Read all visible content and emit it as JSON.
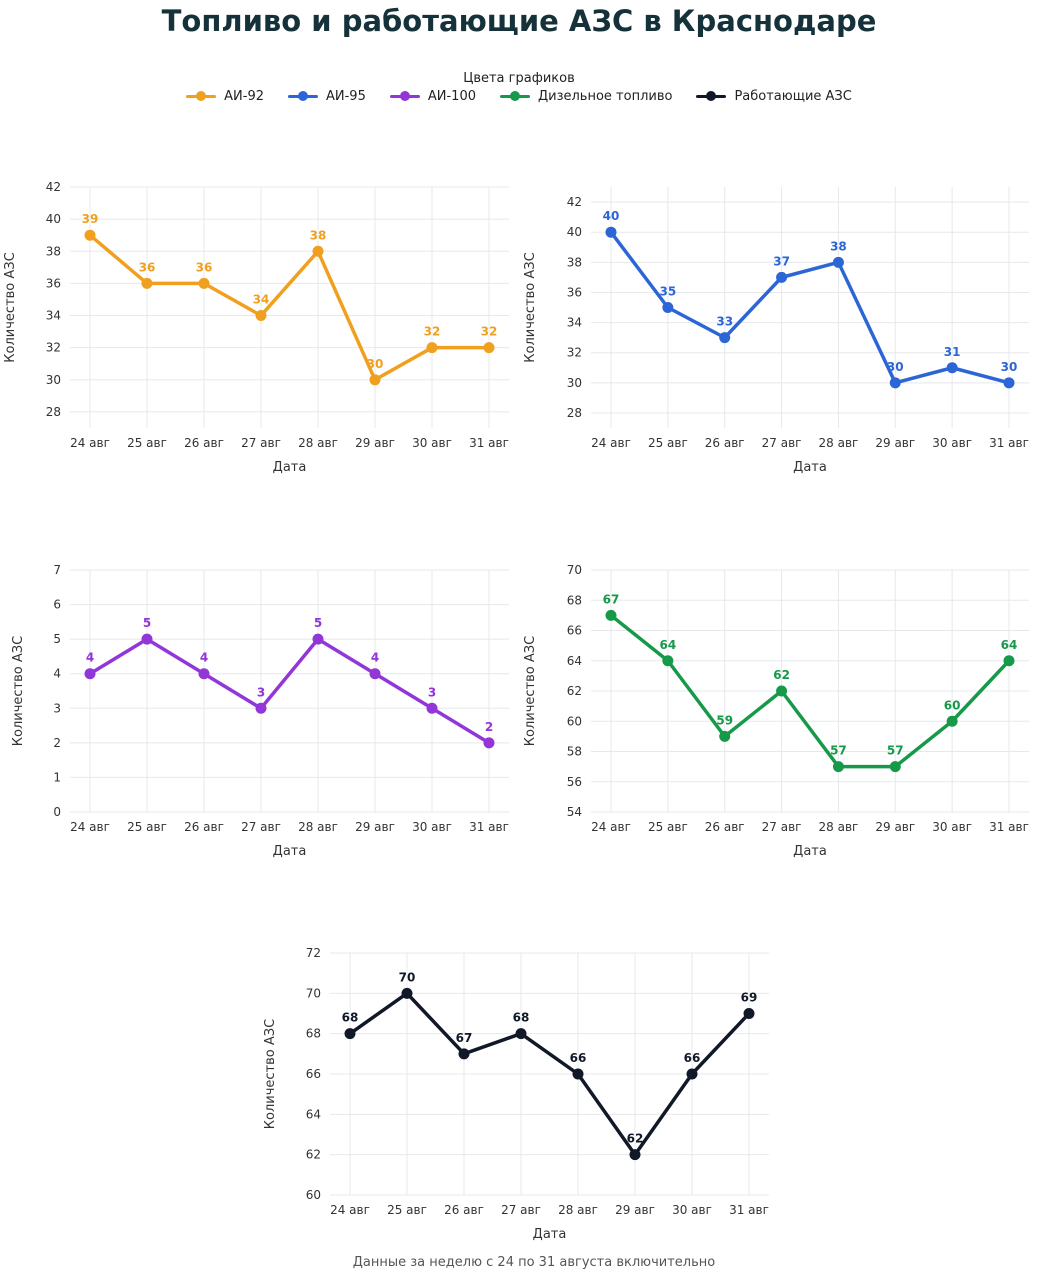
{
  "title": "Топливо и работающие АЗС в Краснодаре",
  "legend": {
    "title": "Цвета графиков",
    "items": [
      {
        "label": "АИ-92",
        "color": "#f0a01e"
      },
      {
        "label": "АИ-95",
        "color": "#2c66d6"
      },
      {
        "label": "АИ-100",
        "color": "#9236d8"
      },
      {
        "label": "Дизельное топливо",
        "color": "#17994a"
      },
      {
        "label": "Работающие АЗС",
        "color": "#111827"
      }
    ]
  },
  "footnote": "Данные за неделю с 24 по 31 августа включительно",
  "chart_data": [
    {
      "type": "line",
      "color": "#f0a01e",
      "categories": [
        "24 авг",
        "25 авг",
        "26 авг",
        "27 авг",
        "28 авг",
        "29 авг",
        "30 авг",
        "31 авг"
      ],
      "values": [
        39,
        36,
        36,
        34,
        38,
        30,
        32,
        32
      ],
      "xlabel": "Дата",
      "ylabel": "Количество АЗС",
      "ylim": [
        27,
        42
      ],
      "yticks": [
        28,
        30,
        32,
        34,
        36,
        38,
        40,
        42
      ],
      "grid": true
    },
    {
      "type": "line",
      "color": "#2c66d6",
      "categories": [
        "24 авг",
        "25 авг",
        "26 авг",
        "27 авг",
        "28 авг",
        "29 авг",
        "30 авг",
        "31 авг"
      ],
      "values": [
        40,
        35,
        33,
        37,
        38,
        30,
        31,
        30
      ],
      "xlabel": "Дата",
      "ylabel": "Количество АЗС",
      "ylim": [
        27,
        43
      ],
      "yticks": [
        28,
        30,
        32,
        34,
        36,
        38,
        40,
        42
      ],
      "grid": true
    },
    {
      "type": "line",
      "color": "#9236d8",
      "categories": [
        "24 авг",
        "25 авг",
        "26 авг",
        "27 авг",
        "28 авг",
        "29 авг",
        "30 авг",
        "31 авг"
      ],
      "values": [
        4,
        5,
        4,
        3,
        5,
        4,
        3,
        2
      ],
      "xlabel": "Дата",
      "ylabel": "Количество АЗС",
      "ylim": [
        0,
        7
      ],
      "yticks": [
        0,
        1,
        2,
        3,
        4,
        5,
        6,
        7
      ],
      "grid": true
    },
    {
      "type": "line",
      "color": "#17994a",
      "categories": [
        "24 авг",
        "25 авг",
        "26 авг",
        "27 авг",
        "28 авг",
        "29 авг",
        "30 авг",
        "31 авг"
      ],
      "values": [
        67,
        64,
        59,
        62,
        57,
        57,
        60,
        64
      ],
      "xlabel": "Дата",
      "ylabel": "Количество АЗС",
      "ylim": [
        54,
        70
      ],
      "yticks": [
        54,
        56,
        58,
        60,
        62,
        64,
        66,
        68,
        70
      ],
      "grid": true
    },
    {
      "type": "line",
      "color": "#111827",
      "categories": [
        "24 авг",
        "25 авг",
        "26 авг",
        "27 авг",
        "28 авг",
        "29 авг",
        "30 авг",
        "31 авг"
      ],
      "values": [
        68,
        70,
        67,
        68,
        66,
        62,
        66,
        69
      ],
      "xlabel": "Дата",
      "ylabel": "Количество АЗС",
      "ylim": [
        60,
        72
      ],
      "yticks": [
        60,
        62,
        64,
        66,
        68,
        70,
        72
      ],
      "grid": true
    }
  ]
}
